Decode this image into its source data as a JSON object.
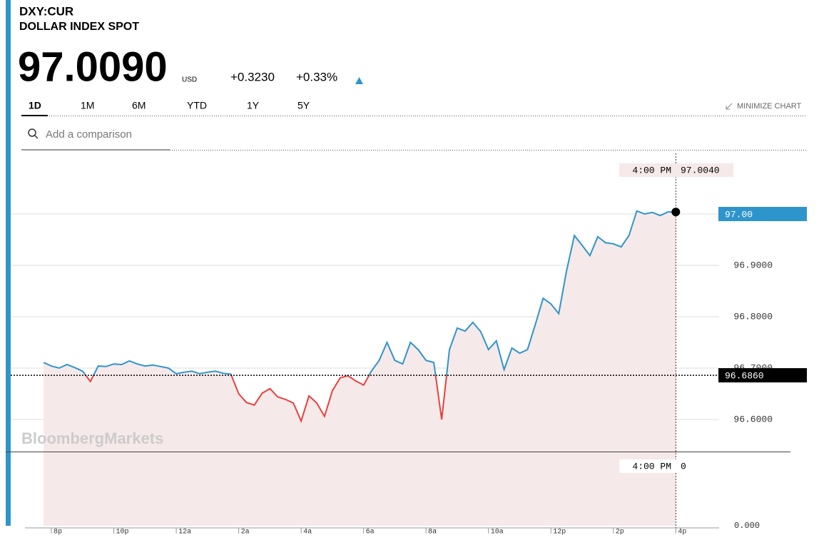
{
  "header": {
    "symbol": "DXY:CUR",
    "name": "DOLLAR INDEX SPOT",
    "price": "97.0090",
    "currency": "USD",
    "change": "+0.3230",
    "change_pct": "+0.33%"
  },
  "tabs": [
    "1D",
    "1M",
    "6M",
    "YTD",
    "1Y",
    "5Y"
  ],
  "minimize": "MINIMIZE CHART",
  "search_placeholder": "Add a comparison",
  "watermark": "BloombergMarkets",
  "chart_data": {
    "type": "line",
    "x": [
      19.75,
      20,
      20.25,
      20.5,
      20.75,
      21,
      21.25,
      21.5,
      21.75,
      22,
      22.25,
      22.5,
      22.75,
      23,
      23.25,
      23.5,
      23.75,
      24,
      24.25,
      24.5,
      24.75,
      25,
      25.25,
      25.5,
      25.75,
      26,
      26.25,
      26.5,
      26.75,
      27,
      27.25,
      27.5,
      27.75,
      28,
      28.25,
      28.5,
      28.75,
      29,
      29.25,
      29.5,
      29.75,
      30,
      30.25,
      30.5,
      30.75,
      31,
      31.25,
      31.5,
      31.75,
      32,
      32.25,
      32.5,
      32.75,
      33,
      33.25,
      33.5,
      33.75,
      34,
      34.25,
      34.5,
      34.75,
      35,
      35.25,
      35.5,
      35.75,
      36,
      36.25,
      36.5,
      36.75,
      37,
      37.25,
      37.5,
      37.75,
      38,
      38.25,
      38.5,
      38.75,
      39,
      39.25,
      39.5,
      39.75,
      40
    ],
    "series": [
      {
        "name": "DXY:CUR",
        "color": "#2e95cc",
        "below_color": "#e8403c",
        "values": [
          96.711,
          96.704,
          96.7,
          96.707,
          96.701,
          96.694,
          96.674,
          96.704,
          96.703,
          96.708,
          96.707,
          96.714,
          96.708,
          96.704,
          96.706,
          96.703,
          96.7,
          96.689,
          96.692,
          96.694,
          96.689,
          96.692,
          96.694,
          96.69,
          96.688,
          96.65,
          96.633,
          96.628,
          96.651,
          96.66,
          96.644,
          96.639,
          96.632,
          96.597,
          96.646,
          96.632,
          96.606,
          96.656,
          96.681,
          96.685,
          96.675,
          96.667,
          96.694,
          96.715,
          96.75,
          96.715,
          96.708,
          96.75,
          96.736,
          96.715,
          96.711,
          96.6,
          96.736,
          96.778,
          96.772,
          96.789,
          96.771,
          96.736,
          96.753,
          96.697,
          96.739,
          96.729,
          96.736,
          96.785,
          96.836,
          96.825,
          96.806,
          96.889,
          96.958,
          96.939,
          96.919,
          96.956,
          96.944,
          96.942,
          96.936,
          96.958,
          97.006,
          97.0,
          97.003,
          96.997,
          97.004,
          97.004
        ]
      }
    ],
    "xlim": [
      19.2,
      41.25
    ],
    "xticks": [
      {
        "value": 20,
        "label": "8p"
      },
      {
        "value": 22,
        "label": "10p"
      },
      {
        "value": 24,
        "label": "12a"
      },
      {
        "value": 26,
        "label": "2a"
      },
      {
        "value": 28,
        "label": "4a"
      },
      {
        "value": 30,
        "label": "6a"
      },
      {
        "value": 32,
        "label": "8a"
      },
      {
        "value": 34,
        "label": "10a"
      },
      {
        "value": 36,
        "label": "12p"
      },
      {
        "value": 38,
        "label": "2p"
      },
      {
        "value": 40,
        "label": "4p"
      }
    ],
    "ylim": [
      96.54,
      97.12
    ],
    "yticks": [
      {
        "value": 96.6,
        "label": "96.6000"
      },
      {
        "value": 96.7,
        "label": "96.7000"
      },
      {
        "value": 96.8,
        "label": "96.8000"
      },
      {
        "value": 96.9,
        "label": "96.9000"
      },
      {
        "value": 97.0,
        "label": "97.00"
      }
    ],
    "grid": true,
    "previous_close": {
      "value": 96.686,
      "label": "96.6860"
    },
    "crosshair": {
      "x": 40,
      "label": "4:00 PM",
      "value": 97.004,
      "value_label": "97.0040"
    },
    "volume": {
      "ylim": [
        0,
        1
      ],
      "yticks": [
        {
          "value": 0,
          "label": "0.000"
        }
      ],
      "crosshair_value": 0
    }
  }
}
